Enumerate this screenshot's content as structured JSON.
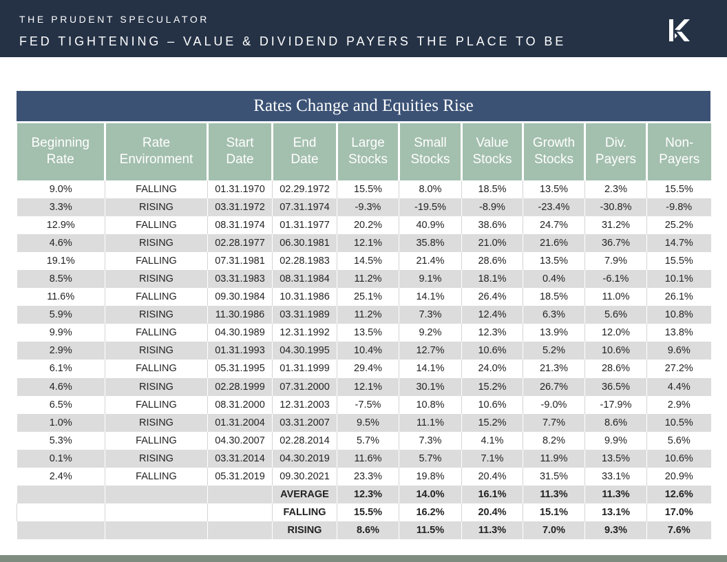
{
  "header": {
    "brand": "THE PRUDENT SPECULATOR",
    "title": "FED TIGHTENING – VALUE & DIVIDEND PAYERS THE PLACE TO BE",
    "logo_icon": "kovitz-k-logo-icon",
    "background": "#253246"
  },
  "table": {
    "title": "Rates Change and Equities Rise",
    "columns": [
      [
        "Beginning",
        "Rate"
      ],
      [
        "Rate",
        "Environment"
      ],
      [
        "Start",
        "Date"
      ],
      [
        "End",
        "Date"
      ],
      [
        "Large",
        "Stocks"
      ],
      [
        "Small",
        "Stocks"
      ],
      [
        "Value",
        "Stocks"
      ],
      [
        "Growth",
        "Stocks"
      ],
      [
        "Div.",
        "Payers"
      ],
      [
        "Non-",
        "Payers"
      ]
    ],
    "rows": [
      [
        "9.0%",
        "FALLING",
        "01.31.1970",
        "02.29.1972",
        "15.5%",
        "8.0%",
        "18.5%",
        "13.5%",
        "2.3%",
        "15.5%"
      ],
      [
        "3.3%",
        "RISING",
        "03.31.1972",
        "07.31.1974",
        "-9.3%",
        "-19.5%",
        "-8.9%",
        "-23.4%",
        "-30.8%",
        "-9.8%"
      ],
      [
        "12.9%",
        "FALLING",
        "08.31.1974",
        "01.31.1977",
        "20.2%",
        "40.9%",
        "38.6%",
        "24.7%",
        "31.2%",
        "25.2%"
      ],
      [
        "4.6%",
        "RISING",
        "02.28.1977",
        "06.30.1981",
        "12.1%",
        "35.8%",
        "21.0%",
        "21.6%",
        "36.7%",
        "14.7%"
      ],
      [
        "19.1%",
        "FALLING",
        "07.31.1981",
        "02.28.1983",
        "14.5%",
        "21.4%",
        "28.6%",
        "13.5%",
        "7.9%",
        "15.5%"
      ],
      [
        "8.5%",
        "RISING",
        "03.31.1983",
        "08.31.1984",
        "11.2%",
        "9.1%",
        "18.1%",
        "0.4%",
        "-6.1%",
        "10.1%"
      ],
      [
        "11.6%",
        "FALLING",
        "09.30.1984",
        "10.31.1986",
        "25.1%",
        "14.1%",
        "26.4%",
        "18.5%",
        "11.0%",
        "26.1%"
      ],
      [
        "5.9%",
        "RISING",
        "11.30.1986",
        "03.31.1989",
        "11.2%",
        "7.3%",
        "12.4%",
        "6.3%",
        "5.6%",
        "10.8%"
      ],
      [
        "9.9%",
        "FALLING",
        "04.30.1989",
        "12.31.1992",
        "13.5%",
        "9.2%",
        "12.3%",
        "13.9%",
        "12.0%",
        "13.8%"
      ],
      [
        "2.9%",
        "RISING",
        "01.31.1993",
        "04.30.1995",
        "10.4%",
        "12.7%",
        "10.6%",
        "5.2%",
        "10.6%",
        "9.6%"
      ],
      [
        "6.1%",
        "FALLING",
        "05.31.1995",
        "01.31.1999",
        "29.4%",
        "14.1%",
        "24.0%",
        "21.3%",
        "28.6%",
        "27.2%"
      ],
      [
        "4.6%",
        "RISING",
        "02.28.1999",
        "07.31.2000",
        "12.1%",
        "30.1%",
        "15.2%",
        "26.7%",
        "36.5%",
        "4.4%"
      ],
      [
        "6.5%",
        "FALLING",
        "08.31.2000",
        "12.31.2003",
        "-7.5%",
        "10.8%",
        "10.6%",
        "-9.0%",
        "-17.9%",
        "2.9%"
      ],
      [
        "1.0%",
        "RISING",
        "01.31.2004",
        "03.31.2007",
        "9.5%",
        "11.1%",
        "15.2%",
        "7.7%",
        "8.6%",
        "10.5%"
      ],
      [
        "5.3%",
        "FALLING",
        "04.30.2007",
        "02.28.2014",
        "5.7%",
        "7.3%",
        "4.1%",
        "8.2%",
        "9.9%",
        "5.6%"
      ],
      [
        "0.1%",
        "RISING",
        "03.31.2014",
        "04.30.2019",
        "11.6%",
        "5.7%",
        "7.1%",
        "11.9%",
        "13.5%",
        "10.6%"
      ],
      [
        "2.4%",
        "FALLING",
        "05.31.2019",
        "09.30.2021",
        "23.3%",
        "19.8%",
        "20.4%",
        "31.5%",
        "33.1%",
        "20.9%"
      ]
    ],
    "summary": [
      [
        "AVERAGE",
        "12.3%",
        "14.0%",
        "16.1%",
        "11.3%",
        "11.3%",
        "12.6%"
      ],
      [
        "FALLING",
        "15.5%",
        "16.2%",
        "20.4%",
        "15.1%",
        "13.1%",
        "17.0%"
      ],
      [
        "RISING",
        "8.6%",
        "11.5%",
        "11.3%",
        "7.0%",
        "9.3%",
        "7.6%"
      ]
    ]
  }
}
